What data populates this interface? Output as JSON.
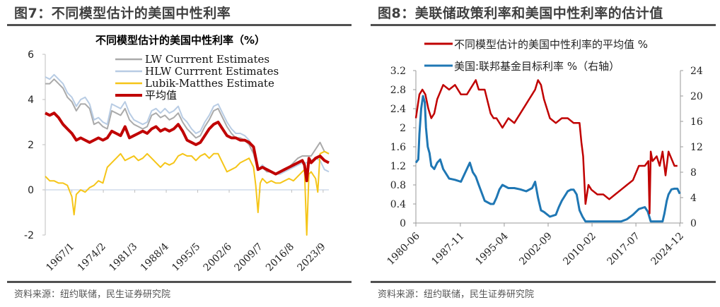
{
  "figures": [
    {
      "title": "图7：不同模型估计的美国中性利率",
      "source": "资料来源：纽约联储，民生证券研究院"
    },
    {
      "title": "图8：美联储政策利率和美国中性利率的估计值",
      "source": "资料来源：纽约联储，民生证券研究院"
    }
  ],
  "chart_data": [
    {
      "type": "line",
      "title": "不同模型估计的美国中性利率（%）",
      "xlabel": "",
      "ylabel": "",
      "ylim": [
        -2,
        6
      ],
      "yticks": [
        6,
        4,
        2,
        0,
        -2
      ],
      "xlim": [
        1961.0,
        2025.0
      ],
      "xtick_labels": [
        "1967/1",
        "1974/2",
        "1981/3",
        "1988/4",
        "1995/5",
        "2002/6",
        "2009/7",
        "2016/8",
        "2023/9"
      ],
      "xtick_values": [
        1967.0,
        1974.1,
        1981.2,
        1988.3,
        1995.4,
        2002.5,
        2009.5,
        2016.6,
        2023.7
      ],
      "legend_position": "top-right",
      "grid": false,
      "series": [
        {
          "name": "LW Currrent Estimates",
          "color": "#aaaaaa",
          "x": [
            1961,
            1962,
            1963,
            1964,
            1965,
            1966,
            1967,
            1968,
            1969,
            1970,
            1971,
            1972,
            1973,
            1974,
            1975,
            1976,
            1977,
            1978,
            1979,
            1980,
            1981,
            1982,
            1983,
            1984,
            1985,
            1986,
            1987,
            1988,
            1989,
            1990,
            1991,
            1992,
            1993,
            1994,
            1995,
            1996,
            1997,
            1998,
            1999,
            2000,
            2001,
            2002,
            2003,
            2004,
            2005,
            2006,
            2007,
            2008,
            2009,
            2010,
            2011,
            2012,
            2013,
            2014,
            2015,
            2016,
            2017,
            2018,
            2019,
            2020,
            2021,
            2022,
            2023,
            2024,
            2025
          ],
          "y": [
            4.7,
            4.7,
            4.9,
            4.7,
            4.5,
            4.1,
            3.9,
            3.5,
            3.8,
            3.8,
            3.6,
            2.9,
            3.0,
            2.8,
            2.7,
            3.5,
            3.4,
            3.3,
            3.6,
            3.1,
            2.9,
            2.8,
            2.7,
            2.8,
            3.3,
            3.4,
            3.2,
            3.3,
            3.1,
            3.2,
            3.4,
            3.0,
            2.7,
            2.5,
            2.3,
            2.4,
            2.8,
            3.1,
            3.5,
            3.6,
            3.2,
            2.8,
            2.5,
            2.3,
            2.3,
            2.2,
            2.0,
            1.6,
            0.9,
            1.0,
            0.8,
            0.8,
            0.7,
            0.8,
            0.9,
            1.0,
            1.2,
            1.4,
            1.5,
            1.5,
            1.5,
            1.8,
            2.1,
            1.7,
            1.6
          ]
        },
        {
          "name": "HLW Currrent Estimates",
          "color": "#b8cce4",
          "x": [
            1961,
            1962,
            1963,
            1964,
            1965,
            1966,
            1967,
            1968,
            1969,
            1970,
            1971,
            1972,
            1973,
            1974,
            1975,
            1976,
            1977,
            1978,
            1979,
            1980,
            1981,
            1982,
            1983,
            1984,
            1985,
            1986,
            1987,
            1988,
            1989,
            1990,
            1991,
            1992,
            1993,
            1994,
            1995,
            1996,
            1997,
            1998,
            1999,
            2000,
            2001,
            2002,
            2003,
            2004,
            2005,
            2006,
            2007,
            2008,
            2009,
            2010,
            2011,
            2012,
            2013,
            2014,
            2015,
            2016,
            2017,
            2018,
            2019,
            2020,
            2021,
            2022,
            2023,
            2024,
            2025
          ],
          "y": [
            5.0,
            4.9,
            5.1,
            4.9,
            4.7,
            4.3,
            4.1,
            3.7,
            4.0,
            4.1,
            3.8,
            3.1,
            3.2,
            3.0,
            2.9,
            3.8,
            3.7,
            3.6,
            3.9,
            3.4,
            3.1,
            3.0,
            2.9,
            3.0,
            3.5,
            3.6,
            3.4,
            3.6,
            3.4,
            3.5,
            3.7,
            3.2,
            3.0,
            2.7,
            2.5,
            2.6,
            3.0,
            3.3,
            3.7,
            3.8,
            3.4,
            3.0,
            2.7,
            2.5,
            2.5,
            2.4,
            2.2,
            1.8,
            0.9,
            1.1,
            0.9,
            0.8,
            0.7,
            0.7,
            0.8,
            0.9,
            1.0,
            1.1,
            1.2,
            1.2,
            1.3,
            1.4,
            1.3,
            0.9,
            0.8
          ]
        },
        {
          "name": "Lubik-Matthes Estimate",
          "color": "#f5c518",
          "x": [
            1961,
            1962,
            1963,
            1964,
            1965,
            1966,
            1967,
            1967.5,
            1968,
            1969,
            1970,
            1971,
            1972,
            1973,
            1974,
            1975,
            1976,
            1977,
            1978,
            1979,
            1980,
            1981,
            1982,
            1983,
            1984,
            1985,
            1986,
            1987,
            1988,
            1989,
            1990,
            1991,
            1992,
            1993,
            1994,
            1995,
            1996,
            1997,
            1998,
            1999,
            2000,
            2001,
            2002,
            2003,
            2004,
            2005,
            2006,
            2007,
            2008,
            2008.5,
            2009,
            2009.5,
            2010,
            2011,
            2012,
            2013,
            2014,
            2015,
            2016,
            2017,
            2018,
            2019,
            2019.5,
            2020,
            2020.5,
            2021,
            2022,
            2022.5,
            2023,
            2024,
            2025
          ],
          "y": [
            0.6,
            0.4,
            0.4,
            0.3,
            0.3,
            0.2,
            -0.3,
            -1.1,
            -0.2,
            0.0,
            -0.1,
            0.1,
            0.2,
            0.4,
            0.3,
            1.0,
            1.2,
            1.4,
            1.6,
            1.3,
            1.4,
            1.5,
            1.3,
            1.4,
            1.6,
            1.4,
            1.2,
            1.0,
            1.2,
            1.1,
            1.2,
            1.5,
            1.6,
            1.5,
            1.5,
            1.3,
            1.5,
            1.6,
            1.4,
            1.6,
            1.6,
            1.2,
            0.8,
            0.9,
            1.0,
            1.2,
            1.3,
            1.4,
            1.0,
            0.2,
            -1.0,
            0.3,
            0.5,
            0.3,
            0.4,
            0.3,
            0.3,
            0.4,
            0.5,
            0.4,
            0.6,
            0.8,
            0.9,
            -2.0,
            0.7,
            0.8,
            0.5,
            -0.1,
            1.6,
            1.7,
            1.6
          ]
        },
        {
          "name": "平均值",
          "color": "#c00000",
          "x": [
            1961,
            1962,
            1963,
            1964,
            1965,
            1966,
            1967,
            1968,
            1969,
            1970,
            1971,
            1972,
            1973,
            1974,
            1975,
            1976,
            1977,
            1978,
            1979,
            1980,
            1981,
            1982,
            1983,
            1984,
            1985,
            1986,
            1987,
            1988,
            1989,
            1990,
            1991,
            1992,
            1993,
            1994,
            1995,
            1996,
            1997,
            1998,
            1999,
            2000,
            2001,
            2002,
            2003,
            2004,
            2005,
            2006,
            2007,
            2008,
            2009,
            2010,
            2011,
            2012,
            2013,
            2014,
            2015,
            2016,
            2017,
            2018,
            2019,
            2019.5,
            2020,
            2020.5,
            2021,
            2022,
            2023,
            2024,
            2025
          ],
          "y": [
            3.4,
            3.3,
            3.4,
            3.2,
            2.9,
            2.7,
            2.5,
            2.2,
            2.3,
            2.2,
            2.1,
            2.2,
            2.3,
            2.2,
            2.3,
            2.6,
            2.5,
            2.4,
            2.8,
            2.3,
            2.4,
            2.5,
            2.6,
            2.5,
            2.7,
            2.8,
            2.6,
            2.7,
            2.6,
            2.7,
            2.9,
            2.6,
            2.2,
            2.1,
            2.0,
            2.1,
            2.4,
            2.7,
            2.9,
            3.0,
            2.7,
            2.4,
            2.3,
            2.3,
            2.2,
            2.2,
            2.1,
            1.9,
            0.9,
            1.0,
            0.9,
            0.8,
            0.7,
            0.8,
            0.9,
            1.0,
            1.1,
            1.2,
            1.3,
            1.1,
            0.4,
            1.4,
            1.2,
            1.4,
            1.5,
            1.3,
            1.2
          ]
        }
      ]
    },
    {
      "type": "line",
      "title": "",
      "xlabel": "",
      "ylabel": "",
      "ylim": [
        0,
        3.2
      ],
      "yticks": [
        3.2,
        2.8,
        2.4,
        2.0,
        1.6,
        1.2,
        0.8,
        0.4,
        0
      ],
      "ytick_labels": [
        "3.2",
        "2.8",
        "2.4",
        "2",
        "1.6",
        "1.2",
        "0.8",
        "0.4",
        "0"
      ],
      "y2lim": [
        0,
        24
      ],
      "y2ticks": [
        24,
        20,
        16,
        12,
        8,
        4,
        0
      ],
      "xlim": [
        1980.4,
        2025.0
      ],
      "xtick_labels": [
        "1980-06",
        "1987-11",
        "1995-04",
        "2002-09",
        "2010-02",
        "2017-07",
        "2024-12"
      ],
      "xtick_values": [
        1980.4,
        1987.9,
        1995.3,
        2002.7,
        2010.1,
        2017.5,
        2024.9
      ],
      "legend_position": "top",
      "grid": false,
      "series": [
        {
          "name": "不同模型估计的美国中性利率的平均值 %",
          "axis": "left",
          "color": "#c00000",
          "x": [
            1980.4,
            1981,
            1981.5,
            1982,
            1982.5,
            1983,
            1983.5,
            1984,
            1985,
            1986,
            1987,
            1988,
            1989,
            1990,
            1990.5,
            1991,
            1992,
            1993,
            1993.5,
            1994,
            1995,
            1996,
            1997,
            1998,
            1999,
            1999.5,
            2000,
            2000.5,
            2001,
            2001.5,
            2002,
            2003,
            2004,
            2005,
            2006,
            2007,
            2008,
            2008.3,
            2008.6,
            2009,
            2009.5,
            2010,
            2011,
            2012,
            2013,
            2014,
            2015,
            2016,
            2017,
            2018,
            2019,
            2019.6,
            2019.8,
            2020,
            2020.3,
            2021,
            2021.5,
            2022,
            2022.5,
            2023,
            2024,
            2024.5
          ],
          "y": [
            2.2,
            2.7,
            2.8,
            2.7,
            2.4,
            2.2,
            2.3,
            2.6,
            2.9,
            2.8,
            2.9,
            2.7,
            2.7,
            2.9,
            3.0,
            2.8,
            2.8,
            2.3,
            2.2,
            2.2,
            2.0,
            2.2,
            2.1,
            2.3,
            2.5,
            2.6,
            2.7,
            2.8,
            3.0,
            2.9,
            2.6,
            2.2,
            2.1,
            2.2,
            2.2,
            2.1,
            2.1,
            1.7,
            1.4,
            0.4,
            0.8,
            0.7,
            0.6,
            0.6,
            0.5,
            0.6,
            0.7,
            0.8,
            0.9,
            1.2,
            1.2,
            1.3,
            0.2,
            1.5,
            1.3,
            1.4,
            1.2,
            1.5,
            1.0,
            1.5,
            1.2,
            1.2
          ]
        },
        {
          "name": "美国:联邦基金目标利率 %（右轴）",
          "axis": "right",
          "color": "#1f77b4",
          "x": [
            1980.4,
            1980.8,
            1981,
            1981.3,
            1981.6,
            1981.9,
            1982.1,
            1982.4,
            1982.7,
            1983,
            1983.5,
            1984,
            1984.5,
            1985,
            1986,
            1987,
            1988,
            1989,
            1989.5,
            1990,
            1990.5,
            1991,
            1992,
            1993,
            1993.5,
            1994,
            1994.5,
            1995,
            1996,
            1997,
            1998,
            1999,
            2000,
            2000.5,
            2001,
            2001.5,
            2002,
            2003,
            2004,
            2004.5,
            2005,
            2006,
            2006.5,
            2007,
            2007.5,
            2008,
            2008.5,
            2009,
            2010,
            2011,
            2012,
            2013,
            2014,
            2015,
            2016,
            2017,
            2018,
            2019,
            2019.5,
            2020,
            2020.3,
            2021,
            2022,
            2022.3,
            2022.7,
            2023,
            2023.5,
            2024,
            2024.5,
            2024.9
          ],
          "y": [
            9.5,
            10,
            14,
            18,
            20,
            19,
            15,
            12,
            11,
            9,
            8.5,
            9.5,
            10,
            8.5,
            7,
            6.8,
            6.5,
            8.5,
            9.5,
            8,
            7.3,
            6,
            3.5,
            3,
            3,
            4,
            5.3,
            6,
            5.5,
            5.5,
            5.3,
            5,
            5.5,
            6.5,
            4,
            2,
            1.75,
            1,
            1.3,
            2.5,
            3.5,
            5,
            5.25,
            5.25,
            4.5,
            2,
            1,
            0.25,
            0.25,
            0.25,
            0.25,
            0.25,
            0.25,
            0.25,
            0.6,
            1.3,
            2.2,
            2.5,
            1.8,
            0.25,
            0.25,
            0.25,
            0.25,
            1.5,
            3.5,
            4.5,
            5.3,
            5.4,
            5.4,
            4.6
          ]
        }
      ]
    }
  ]
}
